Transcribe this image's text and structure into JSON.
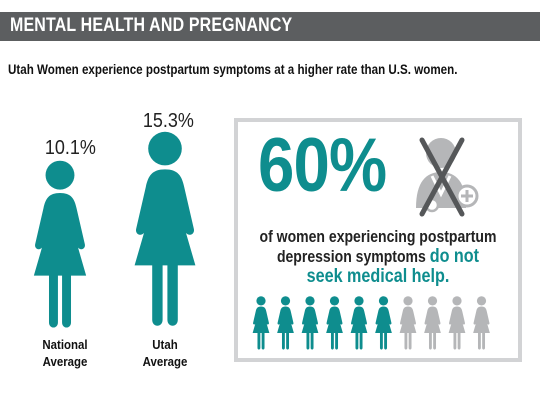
{
  "header": {
    "title": "MENTAL HEALTH AND PREGNANCY"
  },
  "subtitle": "Utah Women experience postpartum symptoms at a higher rate than U.S. women.",
  "figures": [
    {
      "value_label": "10.1%",
      "label_line1": "National",
      "label_line2": "Average"
    },
    {
      "value_label": "15.3%",
      "label_line1": "Utah",
      "label_line2": "Average"
    }
  ],
  "stat": {
    "value": "60%",
    "line1": "of women experiencing postpartum",
    "line2_plain": "depression symptoms ",
    "line2_highlight": "do not",
    "line3_highlight": "seek medical help."
  },
  "icons": {
    "doctor": "crossed-out-doctor-icon",
    "person": "woman-figure-icon"
  },
  "colors": {
    "accent": "#0e8d8e",
    "inactive": "#b5b6b8",
    "header": "#5c5e60"
  },
  "chart_data": {
    "type": "bar",
    "categories": [
      "National Average",
      "Utah Average"
    ],
    "values": [
      10.1,
      15.3
    ],
    "unit": "%",
    "pictograph": {
      "total": 10,
      "highlighted": 6,
      "value_percent": 60
    }
  }
}
